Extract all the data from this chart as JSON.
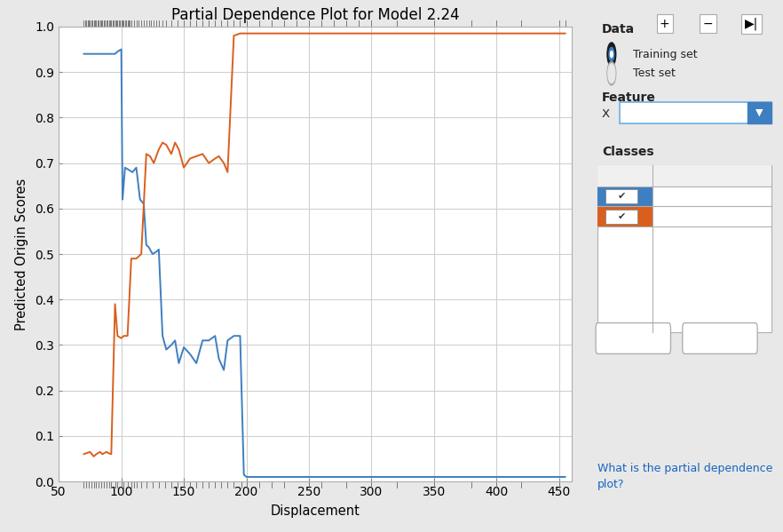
{
  "title": "Partial Dependence Plot for Model 2.24",
  "xlabel": "Displacement",
  "ylabel": "Predicted Origin Scores",
  "xlim": [
    50,
    460
  ],
  "ylim": [
    0,
    1.0
  ],
  "yticks": [
    0,
    0.1,
    0.2,
    0.3,
    0.4,
    0.5,
    0.6,
    0.7,
    0.8,
    0.9,
    1.0
  ],
  "xticks": [
    50,
    100,
    150,
    200,
    250,
    300,
    350,
    400,
    450
  ],
  "blue_color": "#3e7fc1",
  "orange_color": "#d95f1e",
  "plot_bg_color": "#ffffff",
  "grid_color": "#d0d0d0",
  "outer_bg": "#e8e8e8",
  "blue_x": [
    70,
    75,
    80,
    85,
    88,
    90,
    92,
    95,
    97,
    100,
    101,
    103,
    106,
    109,
    112,
    115,
    118,
    120,
    122,
    125,
    128,
    130,
    133,
    136,
    140,
    143,
    146,
    150,
    155,
    160,
    165,
    170,
    175,
    178,
    182,
    185,
    190,
    195,
    198,
    200,
    210,
    220,
    230,
    250,
    300,
    350,
    400,
    455
  ],
  "blue_y": [
    0.94,
    0.94,
    0.94,
    0.94,
    0.94,
    0.94,
    0.94,
    0.94,
    0.945,
    0.95,
    0.62,
    0.69,
    0.685,
    0.68,
    0.69,
    0.62,
    0.61,
    0.52,
    0.515,
    0.5,
    0.505,
    0.51,
    0.32,
    0.29,
    0.3,
    0.31,
    0.26,
    0.295,
    0.28,
    0.26,
    0.31,
    0.31,
    0.32,
    0.27,
    0.245,
    0.31,
    0.32,
    0.32,
    0.015,
    0.01,
    0.01,
    0.01,
    0.01,
    0.01,
    0.01,
    0.01,
    0.01,
    0.01
  ],
  "orange_x": [
    70,
    75,
    78,
    80,
    83,
    85,
    88,
    90,
    92,
    95,
    97,
    100,
    102,
    105,
    108,
    112,
    116,
    120,
    123,
    126,
    130,
    133,
    136,
    140,
    143,
    146,
    150,
    155,
    160,
    165,
    170,
    175,
    178,
    182,
    185,
    190,
    195,
    198,
    200,
    210,
    220,
    230,
    250,
    300,
    350,
    400,
    455
  ],
  "orange_y": [
    0.06,
    0.065,
    0.055,
    0.06,
    0.065,
    0.06,
    0.065,
    0.062,
    0.06,
    0.39,
    0.32,
    0.315,
    0.32,
    0.32,
    0.49,
    0.49,
    0.5,
    0.72,
    0.715,
    0.7,
    0.73,
    0.745,
    0.74,
    0.72,
    0.745,
    0.73,
    0.69,
    0.71,
    0.715,
    0.72,
    0.7,
    0.71,
    0.715,
    0.7,
    0.68,
    0.98,
    0.985,
    0.985,
    0.985,
    0.985,
    0.985,
    0.985,
    0.985,
    0.985,
    0.985,
    0.985,
    0.985
  ],
  "rug_x_top": [
    70,
    71,
    72,
    73,
    74,
    75,
    76,
    77,
    78,
    79,
    80,
    81,
    82,
    83,
    84,
    85,
    86,
    87,
    88,
    89,
    90,
    91,
    92,
    93,
    94,
    95,
    96,
    97,
    98,
    99,
    100,
    101,
    102,
    103,
    104,
    105,
    106,
    107,
    108,
    110,
    112,
    114,
    116,
    118,
    120,
    122,
    124,
    126,
    128,
    130,
    133,
    136,
    140,
    145,
    150,
    155,
    160,
    165,
    170,
    175,
    180,
    185,
    190,
    195,
    200,
    210,
    220,
    230,
    240,
    250,
    260,
    270,
    280,
    290,
    300,
    320,
    350,
    380,
    400,
    420,
    450,
    455
  ],
  "rug_x_bot": [
    70,
    72,
    74,
    76,
    78,
    80,
    82,
    84,
    86,
    88,
    90,
    92,
    95,
    97,
    100,
    102,
    105,
    108,
    110,
    112,
    116,
    120,
    125,
    130,
    135,
    140,
    145,
    150,
    155,
    160,
    165,
    170,
    175,
    180,
    185,
    190,
    196,
    200,
    210,
    220,
    230,
    250,
    260,
    280,
    300,
    320,
    350,
    380,
    400,
    420,
    450
  ],
  "sidebar_bg": "#e8e8e8",
  "toolbar_bg": "#e0e0e0",
  "white": "#ffffff",
  "border_color": "#b0b0b0",
  "text_dark": "#222222",
  "link_color": "#1565c0"
}
